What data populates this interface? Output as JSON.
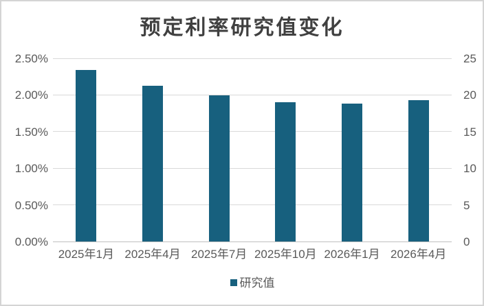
{
  "window": {
    "background": "#ffffff",
    "frame_border_color": "#d4d4d4"
  },
  "chart_data": {
    "type": "bar",
    "title": "预定利率研究值变化",
    "categories": [
      "2025年1月",
      "2025年4月",
      "2025年7月",
      "2025年10月",
      "2026年1月",
      "2026年4月"
    ],
    "series": [
      {
        "name": "研究值",
        "values": [
          2.34,
          2.13,
          1.99,
          1.9,
          1.88,
          1.93
        ],
        "unit": "%"
      }
    ],
    "left_axis": {
      "ticks": [
        "2.50%",
        "2.00%",
        "1.50%",
        "1.00%",
        "0.50%",
        "0.00%"
      ],
      "min": 0,
      "max": 2.5
    },
    "right_axis": {
      "ticks": [
        "25",
        "20",
        "15",
        "10",
        "5",
        "0"
      ],
      "min": 0,
      "max": 25
    },
    "legend": [
      "研究值"
    ],
    "legend_position": "bottom",
    "grid": true,
    "colors": {
      "bar": "#17607e",
      "title_text": "#404040",
      "axis_text": "#595959",
      "gridline": "#d9d9d9",
      "baseline": "#bfbfbf"
    }
  }
}
